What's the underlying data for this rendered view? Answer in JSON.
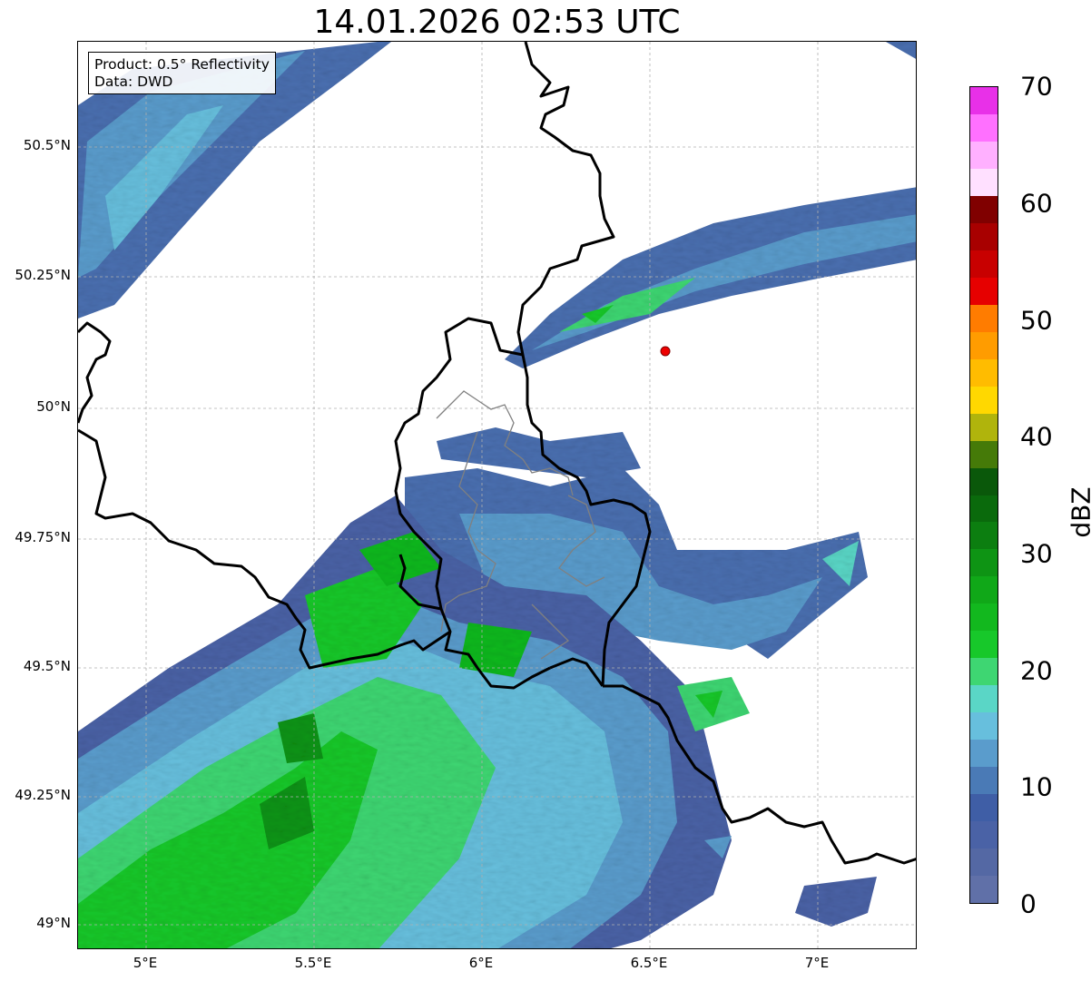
{
  "title": "14.01.2026 02:53 UTC",
  "info": {
    "product": "Product: 0.5° Reflectivity",
    "source": "Data: DWD"
  },
  "axes": {
    "y_ticks": [
      "50.5°N",
      "50.25°N",
      "50°N",
      "49.75°N",
      "49.5°N",
      "49.25°N",
      "49°N"
    ],
    "x_ticks": [
      "5°E",
      "5.5°E",
      "6°E",
      "6.5°E",
      "7°E"
    ],
    "grid": true
  },
  "colorbar": {
    "unit": "dBZ",
    "ticks": [
      "0",
      "10",
      "20",
      "30",
      "40",
      "50",
      "60",
      "70"
    ],
    "colors": [
      "#6070a8",
      "#5468a4",
      "#4a62a6",
      "#3f5ea6",
      "#4a7ab6",
      "#5a9ccc",
      "#67bfdd",
      "#5ad6c6",
      "#3ed672",
      "#17c82a",
      "#12b81e",
      "#10a818",
      "#0e9414",
      "#0c7e10",
      "#0a6a0c",
      "#0a580a",
      "#457a08",
      "#b0b40c",
      "#ffd800",
      "#ffbc00",
      "#ff9c00",
      "#ff7c00",
      "#e60000",
      "#c80000",
      "#a80000",
      "#800000",
      "#ffe0ff",
      "#ffb0ff",
      "#ff70ff",
      "#e830e8"
    ]
  },
  "site_marker_color": "#ee0000"
}
